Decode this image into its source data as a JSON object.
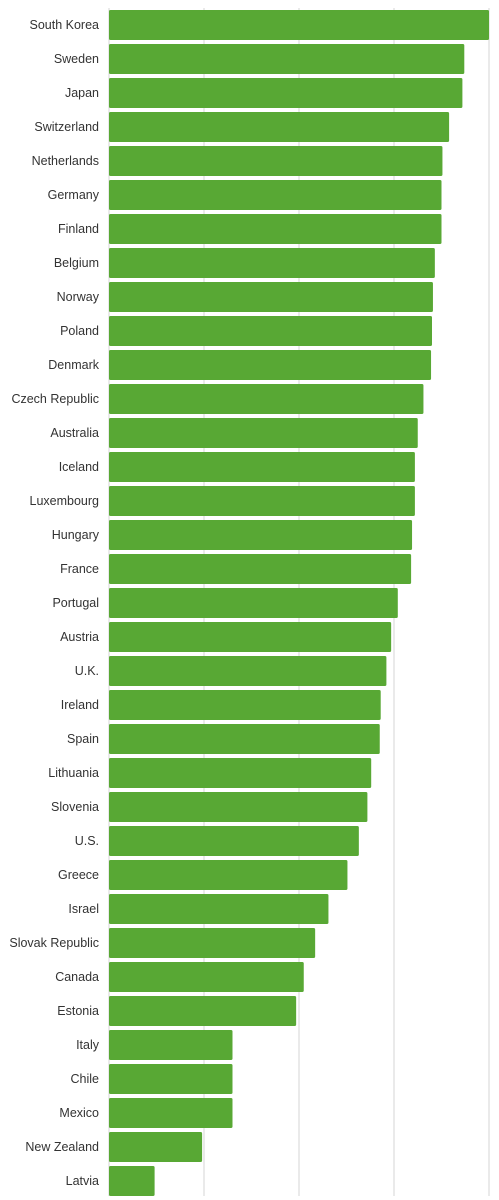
{
  "chart_data": {
    "type": "bar",
    "orientation": "horizontal",
    "title": "",
    "xlabel": "",
    "ylabel": "",
    "categories": [
      "South Korea",
      "Sweden",
      "Japan",
      "Switzerland",
      "Netherlands",
      "Germany",
      "Finland",
      "Belgium",
      "Norway",
      "Poland",
      "Denmark",
      "Czech Republic",
      "Australia",
      "Iceland",
      "Luxembourg",
      "Hungary",
      "France",
      "Portugal",
      "Austria",
      "U.K.",
      "Ireland",
      "Spain",
      "Lithuania",
      "Slovenia",
      "U.S.",
      "Greece",
      "Israel",
      "Slovak Republic",
      "Canada",
      "Estonia",
      "Italy",
      "Chile",
      "Mexico",
      "New Zealand",
      "Latvia"
    ],
    "values": [
      4.0,
      3.74,
      3.72,
      3.58,
      3.51,
      3.5,
      3.5,
      3.43,
      3.41,
      3.4,
      3.39,
      3.31,
      3.25,
      3.22,
      3.22,
      3.19,
      3.18,
      3.04,
      2.97,
      2.92,
      2.86,
      2.85,
      2.76,
      2.72,
      2.63,
      2.51,
      2.31,
      2.17,
      2.05,
      1.97,
      1.3,
      1.3,
      1.3,
      0.98,
      0.48
    ],
    "xlim": [
      0,
      4
    ],
    "grid": true,
    "legend": "none",
    "colors": {
      "bar": "#58a834",
      "grid": "#d4d4d4",
      "label": "#333333"
    }
  }
}
